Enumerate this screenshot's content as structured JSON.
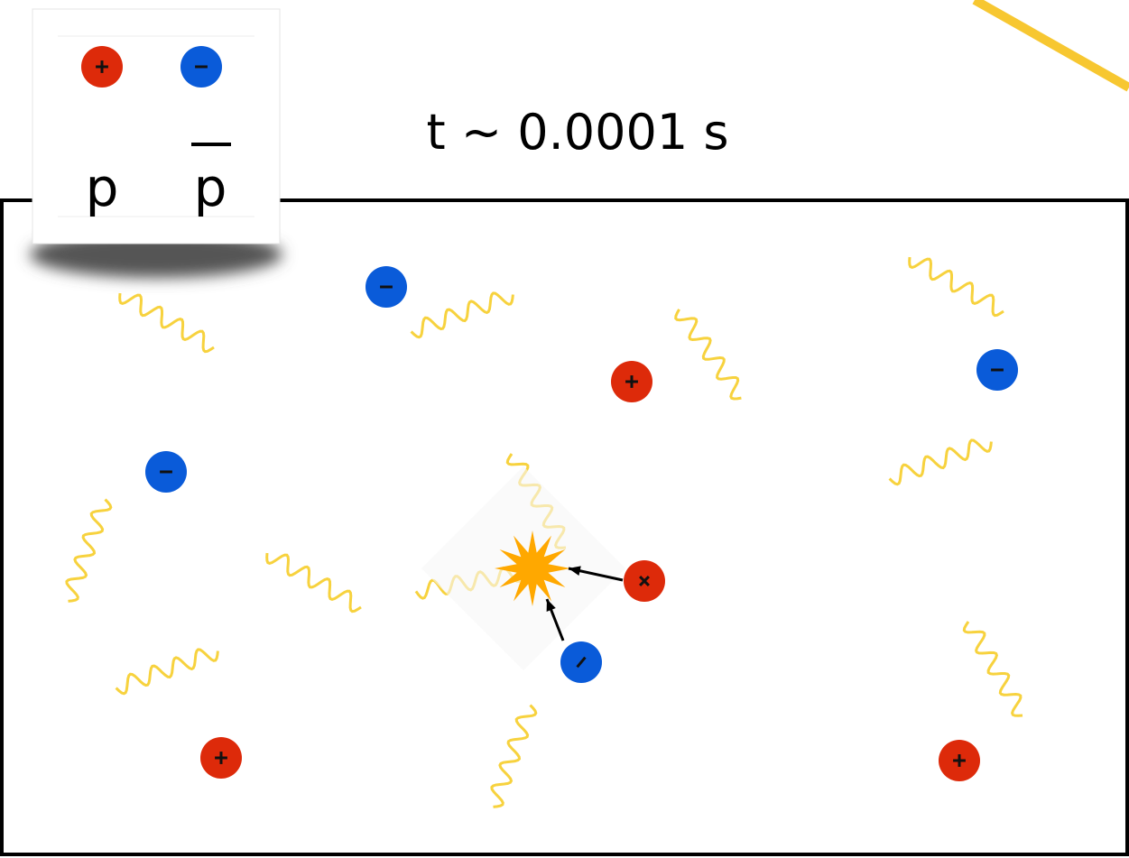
{
  "title": "t ~ 0.0001 s",
  "legend": {
    "items": [
      {
        "label": "p"
      },
      {
        "label": "p"
      }
    ]
  }
}
